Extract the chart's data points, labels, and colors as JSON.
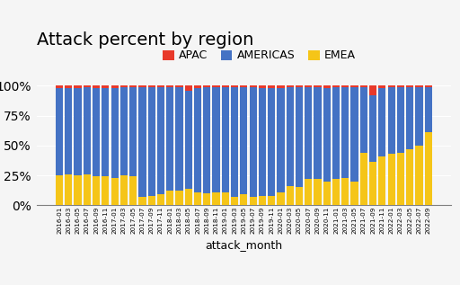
{
  "title": "Attack percent by region",
  "xlabel": "attack_month",
  "legend_labels": [
    "APAC",
    "AMERICAS",
    "EMEA"
  ],
  "colors": [
    "#e8392a",
    "#4472c4",
    "#f5c518"
  ],
  "months": [
    "2016-01",
    "2016-03",
    "2016-05",
    "2016-07",
    "2016-09",
    "2016-11",
    "2017-01",
    "2017-03",
    "2017-05",
    "2017-07",
    "2017-09",
    "2017-11",
    "2018-01",
    "2018-03",
    "2018-05",
    "2018-07",
    "2018-09",
    "2018-11",
    "2019-01",
    "2019-03",
    "2019-05",
    "2019-07",
    "2019-09",
    "2019-11",
    "2020-01",
    "2020-03",
    "2020-05",
    "2020-07",
    "2020-09",
    "2020-11",
    "2021-01",
    "2021-03",
    "2021-05",
    "2021-07",
    "2021-09",
    "2021-11",
    "2022-01",
    "2022-03",
    "2022-05",
    "2022-07",
    "2022-09"
  ],
  "apac": [
    2,
    2,
    2,
    1,
    2,
    2,
    2,
    1,
    1,
    1,
    1,
    1,
    1,
    1,
    4,
    2,
    1,
    1,
    1,
    1,
    1,
    1,
    2,
    2,
    2,
    1,
    1,
    1,
    1,
    2,
    1,
    1,
    1,
    1,
    8,
    2,
    1,
    1,
    1,
    1,
    1
  ],
  "americas": [
    73,
    72,
    73,
    73,
    74,
    74,
    75,
    74,
    75,
    92,
    91,
    90,
    87,
    87,
    82,
    87,
    89,
    88,
    88,
    92,
    90,
    92,
    90,
    90,
    87,
    83,
    84,
    77,
    77,
    78,
    77,
    76,
    79,
    55,
    56,
    57,
    56,
    55,
    52,
    49,
    38
  ],
  "emea": [
    25,
    26,
    25,
    26,
    24,
    24,
    23,
    25,
    24,
    7,
    8,
    9,
    12,
    12,
    14,
    11,
    10,
    11,
    11,
    7,
    9,
    7,
    8,
    8,
    11,
    16,
    15,
    22,
    22,
    20,
    22,
    23,
    20,
    44,
    36,
    41,
    43,
    44,
    47,
    50,
    61
  ],
  "figsize": [
    5.12,
    3.17
  ],
  "dpi": 100,
  "ylim": [
    0,
    105
  ],
  "yticks": [
    0,
    25,
    50,
    75,
    100
  ],
  "bar_width": 0.8,
  "title_fontsize": 14,
  "legend_fontsize": 9,
  "xlabel_fontsize": 9,
  "tick_fontsize": 5.2,
  "bg_color": "#f5f5f5"
}
